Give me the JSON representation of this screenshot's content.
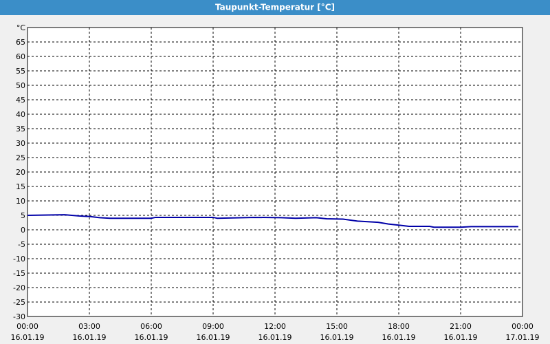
{
  "chart_data": {
    "type": "line",
    "title": "Taupunkt-Temperatur [°C]",
    "x": [
      0,
      1.8,
      2.5,
      3,
      3.5,
      4,
      6,
      6.2,
      9,
      9.2,
      11,
      12.3,
      13,
      14,
      14.5,
      15.3,
      16,
      17,
      17.5,
      18,
      18.5,
      19.5,
      19.7,
      21,
      21.5,
      23.8
    ],
    "series": [
      {
        "name": "Taupunkt-Temperatur",
        "color": "#0000a8",
        "values": [
          5,
          5.2,
          4.8,
          4.6,
          4.2,
          4,
          4,
          4.3,
          4.3,
          4,
          4.3,
          4.2,
          4,
          4.2,
          3.8,
          3.7,
          3,
          2.6,
          2,
          1.6,
          1.2,
          1.2,
          0.9,
          0.9,
          1.1,
          1.1
        ]
      }
    ],
    "xlim": [
      0,
      24
    ],
    "xticks": [
      {
        "value": 0,
        "label": "00:00",
        "date": "16.01.19"
      },
      {
        "value": 3,
        "label": "03:00",
        "date": "16.01.19"
      },
      {
        "value": 6,
        "label": "06:00",
        "date": "16.01.19"
      },
      {
        "value": 9,
        "label": "09:00",
        "date": "16.01.19"
      },
      {
        "value": 12,
        "label": "12:00",
        "date": "16.01.19"
      },
      {
        "value": 15,
        "label": "15:00",
        "date": "16.01.19"
      },
      {
        "value": 18,
        "label": "18:00",
        "date": "16.01.19"
      },
      {
        "value": 21,
        "label": "21:00",
        "date": "16.01.19"
      },
      {
        "value": 24,
        "label": "00:00",
        "date": "17.01.19"
      }
    ],
    "ylim": [
      -30,
      70
    ],
    "yticks": [
      -30,
      -25,
      -20,
      -15,
      -10,
      -5,
      0,
      5,
      10,
      15,
      20,
      25,
      30,
      35,
      40,
      45,
      50,
      55,
      60,
      65,
      {
        "value": 70,
        "label": "°C"
      }
    ],
    "grid": true
  }
}
